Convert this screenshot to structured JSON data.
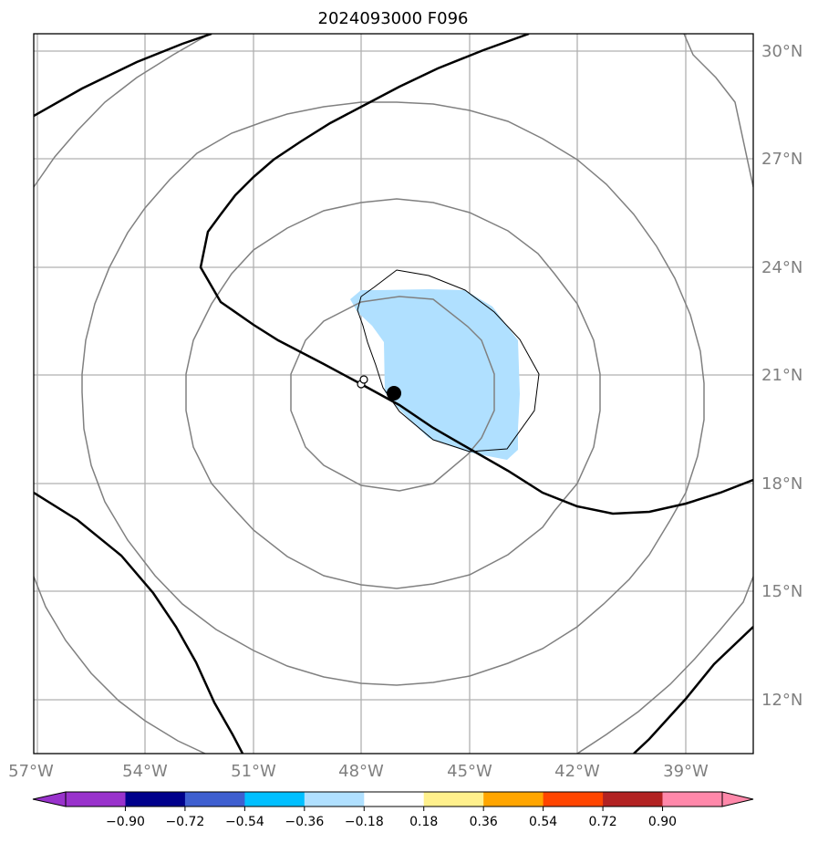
{
  "title": "2024093000 F096",
  "lon_labels": [
    "57°W",
    "54°W",
    "51°W",
    "48°W",
    "45°W",
    "42°W",
    "39°W"
  ],
  "lat_labels": [
    "30°N",
    "27°N",
    "24°N",
    "21°N",
    "18°N",
    "15°N",
    "12°N"
  ],
  "map_extent": {
    "lon": [
      -57,
      -37
    ],
    "lat": [
      10.5,
      30.5
    ]
  },
  "gridlines": true,
  "storm_center": {
    "lon": -47.1,
    "lat": 20.5,
    "color": "#000000"
  },
  "colorbar": {
    "ticks": [
      "−0.90",
      "−0.72",
      "−0.54",
      "−0.36",
      "−0.18",
      "0.18",
      "0.36",
      "0.54",
      "0.72",
      "0.90"
    ],
    "colors": [
      "#9932cc",
      "#00008b",
      "#3e5fd0",
      "#00bfff",
      "#b0e0ff",
      "#ffffff",
      "#fff08c",
      "#ffa500",
      "#ff4500",
      "#b22222",
      "#ff88aa"
    ],
    "extend": "both"
  },
  "colors": {
    "grid": "#b0b0b0",
    "pressure_contour": "#808080",
    "thick_contour": "#000000",
    "shaded_region": "#b0e0ff"
  }
}
